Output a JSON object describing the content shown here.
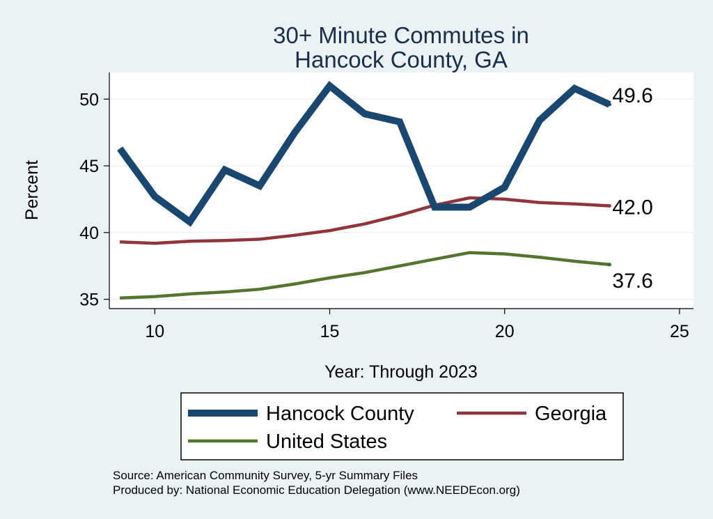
{
  "chart_data": {
    "type": "line",
    "title_lines": [
      "30+ Minute Commutes in",
      "Hancock County, GA"
    ],
    "xlabel": "Year: Through 2023",
    "ylabel": "Percent",
    "xlim": [
      8.7,
      25.4
    ],
    "ylim": [
      34.3,
      52.0
    ],
    "xticks": [
      10,
      15,
      20,
      25
    ],
    "yticks": [
      35,
      40,
      45,
      50
    ],
    "grid": true,
    "legend_position": "bottom",
    "series": [
      {
        "name": "Hancock County",
        "color": "#1a476f",
        "x": [
          9,
          10,
          11,
          12,
          13,
          14,
          15,
          16,
          17,
          18,
          19,
          20,
          21,
          22,
          23
        ],
        "values": [
          46.3,
          42.7,
          40.8,
          44.7,
          43.5,
          47.5,
          51.0,
          48.9,
          48.3,
          41.9,
          41.9,
          43.4,
          48.4,
          50.8,
          49.6
        ],
        "end_label": "49.6"
      },
      {
        "name": "Georgia",
        "color": "#90353b",
        "x": [
          9,
          10,
          11,
          12,
          13,
          14,
          15,
          16,
          17,
          18,
          19,
          20,
          21,
          22,
          23
        ],
        "values": [
          39.3,
          39.2,
          39.35,
          39.4,
          39.5,
          39.8,
          40.15,
          40.65,
          41.3,
          42.05,
          42.6,
          42.5,
          42.25,
          42.15,
          42.0
        ],
        "end_label": "42.0"
      },
      {
        "name": "United States",
        "color": "#55752f",
        "x": [
          9,
          10,
          11,
          12,
          13,
          14,
          15,
          16,
          17,
          18,
          19,
          20,
          21,
          22,
          23
        ],
        "values": [
          35.1,
          35.2,
          35.4,
          35.55,
          35.75,
          36.15,
          36.6,
          37.0,
          37.5,
          38.0,
          38.5,
          38.4,
          38.15,
          37.85,
          37.6
        ],
        "end_label": "37.6"
      }
    ],
    "notes": [
      "Source: American Community Survey, 5-yr Summary Files",
      "Produced by: National Economic Education Delegation (www.NEEDEcon.org)"
    ]
  }
}
